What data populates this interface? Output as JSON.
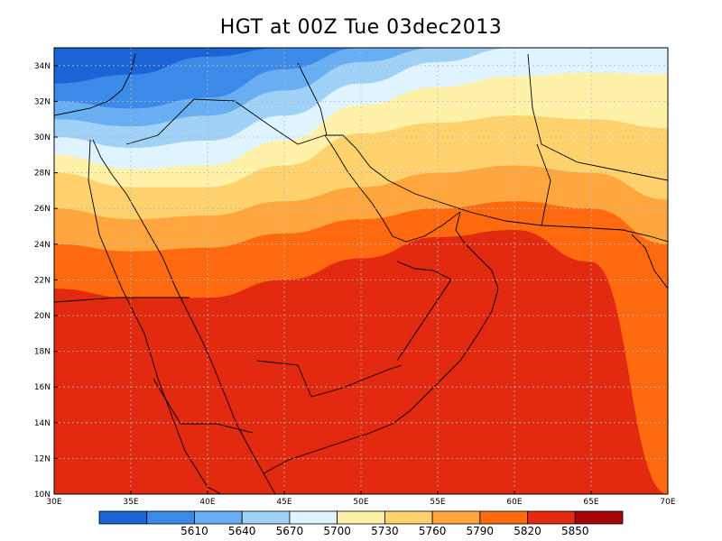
{
  "title": "HGT at 00Z Tue 03dec2013",
  "lat_ticks": [
    "10N",
    "12N",
    "14N",
    "16N",
    "18N",
    "20N",
    "22N",
    "24N",
    "26N",
    "28N",
    "30N",
    "32N",
    "34N"
  ],
  "lon_ticks": [
    "30E",
    "35E",
    "40E",
    "45E",
    "50E",
    "55E",
    "60E",
    "65E",
    "70E"
  ],
  "colorbar": {
    "colors": [
      "#1c64d6",
      "#3c8ae8",
      "#68aef2",
      "#a0d2f8",
      "#e0f4ff",
      "#fff2a8",
      "#ffd26e",
      "#ffa63c",
      "#ff6a10",
      "#e22a10",
      "#a60606"
    ],
    "labels": [
      "5610",
      "5640",
      "5670",
      "5700",
      "5730",
      "5760",
      "5790",
      "5820",
      "5850"
    ]
  },
  "chart_data": {
    "type": "heatmap",
    "title": "HGT at 00Z Tue 03dec2013",
    "variable": "HGT",
    "x_range_lon": [
      30,
      70
    ],
    "y_range_lat": [
      10,
      35
    ],
    "contour_levels": [
      5610,
      5640,
      5670,
      5700,
      5730,
      5760,
      5790,
      5820,
      5850
    ],
    "contour_boundaries_lat_at_lon": {
      "lon": [
        30,
        35,
        40,
        45,
        50,
        55,
        60,
        65,
        70
      ],
      "5610": [
        33.0,
        33.5,
        34.5,
        35.0,
        null,
        null,
        null,
        null,
        null
      ],
      "5640": [
        32.0,
        31.6,
        32.2,
        33.8,
        35.0,
        null,
        null,
        null,
        null
      ],
      "5670": [
        31.0,
        30.6,
        31.2,
        32.6,
        34.2,
        35.0,
        null,
        null,
        null
      ],
      "5700": [
        30.0,
        29.4,
        29.8,
        31.2,
        33.0,
        34.2,
        35.0,
        null,
        null
      ],
      "5730": [
        29.0,
        28.2,
        28.4,
        29.8,
        31.8,
        32.8,
        33.4,
        33.6,
        33.5
      ],
      "5760": [
        28.0,
        27.2,
        27.2,
        28.4,
        30.2,
        30.8,
        31.2,
        31.0,
        30.5
      ],
      "5790": [
        26.0,
        25.4,
        25.6,
        26.4,
        27.2,
        28.0,
        28.4,
        28.0,
        26.5
      ],
      "5820": [
        24.0,
        23.6,
        23.8,
        24.6,
        25.4,
        26.0,
        26.4,
        26.0,
        24.0
      ],
      "5850": [
        21.5,
        21.0,
        21.0,
        22.0,
        23.2,
        24.4,
        24.8,
        23.0,
        10.0
      ]
    },
    "grid": true,
    "colorbar_position": "bottom"
  }
}
